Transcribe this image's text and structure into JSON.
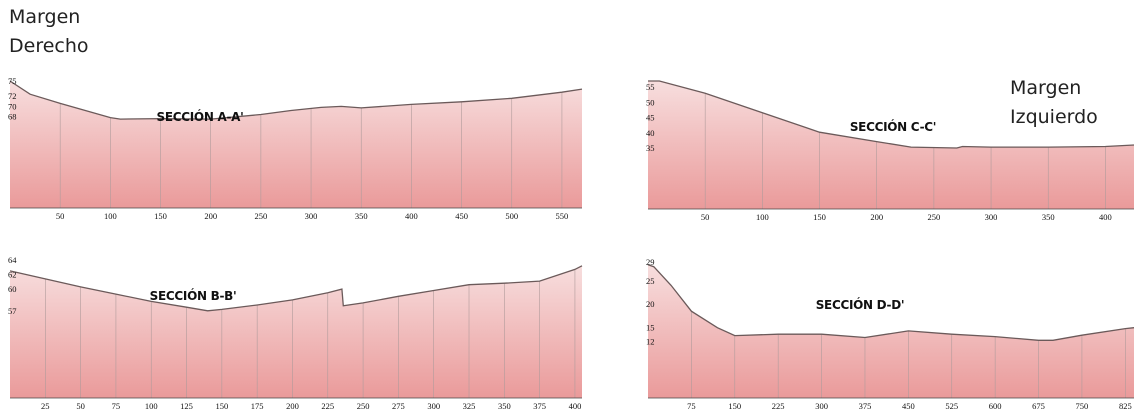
{
  "labels": {
    "right_bank": "Margen\nDerecho",
    "left_bank": "Margen\nIzquierdo"
  },
  "colors": {
    "area_top": "#f6d8d8",
    "area_bottom": "#ea9a9a",
    "profile_line": "#6b5a5a",
    "grid_line": "#b09b9b"
  },
  "chart_data": [
    {
      "id": "A",
      "type": "area",
      "title": "SECCIÓN A-A'",
      "x_ticks": [
        50,
        100,
        150,
        200,
        250,
        300,
        350,
        400,
        450,
        500,
        550
      ],
      "y_ticks": [
        75,
        72,
        70,
        68
      ],
      "xlim": [
        0,
        570
      ],
      "ylim": [
        50,
        75
      ],
      "grid": "vertical",
      "x": [
        0,
        20,
        50,
        100,
        110,
        150,
        200,
        250,
        280,
        310,
        330,
        350,
        400,
        450,
        500,
        550,
        570
      ],
      "y": [
        75,
        72.4,
        70.6,
        67.8,
        67.5,
        67.6,
        67.5,
        68.4,
        69.2,
        69.8,
        70,
        69.7,
        70.4,
        70.9,
        71.6,
        72.8,
        73.4
      ]
    },
    {
      "id": "C",
      "type": "area",
      "title": "SECCIÓN C-C'",
      "x_ticks": [
        50,
        100,
        150,
        200,
        250,
        300,
        350,
        400
      ],
      "y_ticks": [
        55,
        50,
        45,
        40,
        35
      ],
      "xlim": [
        0,
        425
      ],
      "ylim": [
        15,
        57
      ],
      "grid": "vertical",
      "x": [
        0,
        10,
        50,
        100,
        150,
        200,
        230,
        270,
        275,
        300,
        350,
        400,
        425
      ],
      "y": [
        57,
        57,
        53,
        46.6,
        40.2,
        37.1,
        35.3,
        35,
        35.5,
        35.3,
        35.3,
        35.5,
        36
      ]
    },
    {
      "id": "B",
      "type": "area",
      "title": "SECCIÓN B-B'",
      "x_ticks": [
        25,
        50,
        75,
        100,
        125,
        150,
        175,
        200,
        225,
        250,
        275,
        300,
        325,
        350,
        375,
        400
      ],
      "y_ticks": [
        64,
        62,
        60,
        57
      ],
      "xlim": [
        0,
        405
      ],
      "ylim": [
        45,
        64
      ],
      "grid": "vertical",
      "x": [
        0,
        25,
        50,
        75,
        100,
        125,
        140,
        150,
        175,
        200,
        225,
        235,
        236,
        250,
        275,
        300,
        325,
        350,
        375,
        400,
        405
      ],
      "y": [
        62.5,
        61.4,
        60.3,
        59.3,
        58.3,
        57.5,
        57,
        57.2,
        57.8,
        58.5,
        59.5,
        60,
        57.7,
        58.1,
        59,
        59.8,
        60.6,
        60.8,
        61.1,
        62.7,
        63.2
      ]
    },
    {
      "id": "D",
      "type": "area",
      "title": "SECCIÓN D-D'",
      "x_ticks": [
        75,
        150,
        225,
        300,
        375,
        450,
        525,
        600,
        675,
        750,
        825
      ],
      "y_ticks": [
        29,
        25,
        20,
        15,
        12
      ],
      "xlim": [
        0,
        840
      ],
      "ylim": [
        0,
        29
      ],
      "grid": "vertical",
      "x": [
        0,
        10,
        40,
        75,
        120,
        150,
        225,
        300,
        375,
        450,
        525,
        600,
        675,
        700,
        750,
        825,
        840
      ],
      "y": [
        28.4,
        28,
        24,
        18.5,
        15,
        13.3,
        13.6,
        13.6,
        12.9,
        14.3,
        13.6,
        13.1,
        12.3,
        12.3,
        13.4,
        14.8,
        15
      ]
    }
  ]
}
